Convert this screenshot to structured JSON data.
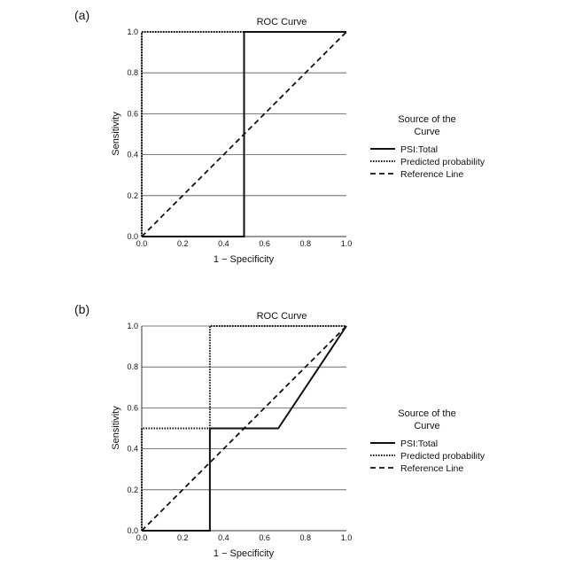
{
  "legend": {
    "title_line1": "Source of the",
    "title_line2": "Curve",
    "entries": [
      {
        "name": "PSI:Total",
        "style": "solid"
      },
      {
        "name": "Predicted probability",
        "style": "dotted"
      },
      {
        "name": "Reference Line",
        "style": "dashed"
      }
    ]
  },
  "chart_data": [
    {
      "panel": "(a)",
      "type": "line",
      "title": "ROC Curve",
      "xlabel": "1 − Specificity",
      "ylabel": "Sensitivity",
      "xlim": [
        0,
        1
      ],
      "ylim": [
        0,
        1
      ],
      "xticks": [
        "0.0",
        "0.2",
        "0.4",
        "0.6",
        "0.8",
        "1.0"
      ],
      "yticks": [
        "0.0",
        "0.2",
        "0.4",
        "0.6",
        "0.8",
        "1.0"
      ],
      "grid": "horizontal",
      "series": [
        {
          "name": "PSI:Total",
          "style": "solid",
          "x": [
            0,
            0.5,
            0.5,
            1.0
          ],
          "y": [
            0,
            0,
            1.0,
            1.0
          ]
        },
        {
          "name": "Predicted probability",
          "style": "dotted",
          "x": [
            0,
            0,
            1.0
          ],
          "y": [
            0,
            1.0,
            1.0
          ]
        },
        {
          "name": "Reference Line",
          "style": "dashed",
          "x": [
            0,
            1.0
          ],
          "y": [
            0,
            1.0
          ]
        }
      ]
    },
    {
      "panel": "(b)",
      "type": "line",
      "title": "ROC Curve",
      "xlabel": "1 − Specificity",
      "ylabel": "Sensitivity",
      "xlim": [
        0,
        1
      ],
      "ylim": [
        0,
        1
      ],
      "xticks": [
        "0.0",
        "0.2",
        "0.4",
        "0.6",
        "0.8",
        "1.0"
      ],
      "yticks": [
        "0.0",
        "0.2",
        "0.4",
        "0.6",
        "0.8",
        "1.0"
      ],
      "grid": "horizontal",
      "series": [
        {
          "name": "PSI:Total",
          "style": "solid",
          "x": [
            0,
            0.333,
            0.333,
            0.667,
            1.0
          ],
          "y": [
            0,
            0,
            0.5,
            0.5,
            1.0
          ]
        },
        {
          "name": "Predicted probability",
          "style": "dotted",
          "x": [
            0,
            0,
            0.333,
            0.333,
            1.0
          ],
          "y": [
            0,
            0.5,
            0.5,
            1.0,
            1.0
          ]
        },
        {
          "name": "Reference Line",
          "style": "dashed",
          "x": [
            0,
            1.0
          ],
          "y": [
            0,
            1.0
          ]
        }
      ]
    }
  ]
}
